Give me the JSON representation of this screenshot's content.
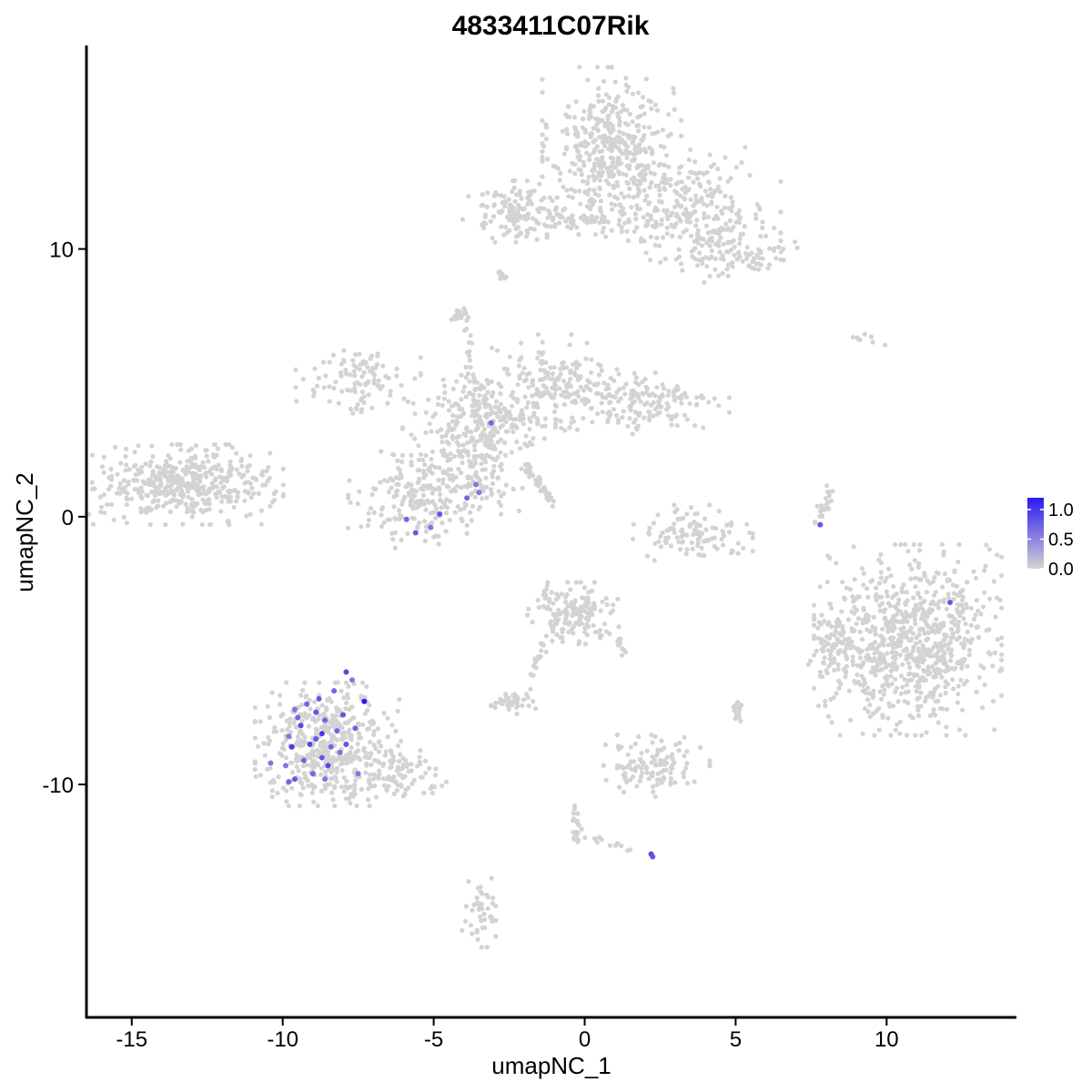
{
  "chart_data": {
    "type": "scatter",
    "title": "4833411C07Rik",
    "xlabel": "umapNC_1",
    "ylabel": "umapNC_2",
    "xlim": [
      -16.5,
      14.3
    ],
    "ylim": [
      -18.7,
      17.6
    ],
    "x_ticks": [
      -15,
      -10,
      -5,
      0,
      5,
      10
    ],
    "x_tick_labels": [
      "-15",
      "-10",
      "-5",
      "0",
      "5",
      "10"
    ],
    "y_ticks": [
      -10,
      0,
      10
    ],
    "y_tick_labels": [
      "-10",
      "0",
      "10"
    ],
    "grid": false,
    "legend": {
      "position": "right",
      "type": "colorbar",
      "min": 0.0,
      "max": 1.2,
      "ticks": [
        0.0,
        0.5,
        1.0
      ],
      "tick_labels": [
        "0.0",
        "0.5",
        "1.0"
      ],
      "low_color": "#d3d3d3",
      "high_color": "#2a1af0"
    },
    "background_color": "#d3d3d3",
    "clusters": [
      {
        "cx": 0.9,
        "cy": 13.8,
        "sx": 1.0,
        "sy": 1.3,
        "n": 420
      },
      {
        "cx": 3.5,
        "cy": 11.5,
        "sx": 1.3,
        "sy": 1.0,
        "n": 260
      },
      {
        "cx": 5.2,
        "cy": 9.9,
        "sx": 0.8,
        "sy": 0.5,
        "n": 90
      },
      {
        "cx": -2.2,
        "cy": 11.4,
        "sx": 0.8,
        "sy": 0.5,
        "n": 130
      },
      {
        "cx": 0.5,
        "cy": 11.0,
        "sx": 1.1,
        "sy": 0.4,
        "n": 50
      },
      {
        "cx": -13.2,
        "cy": 1.2,
        "sx": 1.4,
        "sy": 0.65,
        "n": 440
      },
      {
        "cx": -3.5,
        "cy": 3.9,
        "sx": 1.1,
        "sy": 0.7,
        "n": 170
      },
      {
        "cx": -7.5,
        "cy": 5.1,
        "sx": 0.9,
        "sy": 0.6,
        "n": 100
      },
      {
        "cx": -1.0,
        "cy": 5.2,
        "sx": 0.9,
        "sy": 0.7,
        "n": 130
      },
      {
        "cx": 1.8,
        "cy": 4.2,
        "sx": 1.3,
        "sy": 0.55,
        "n": 170
      },
      {
        "cx": -3.9,
        "cy": 2.0,
        "sx": 0.8,
        "sy": 0.8,
        "n": 150
      },
      {
        "cx": -5.3,
        "cy": 0.6,
        "sx": 1.1,
        "sy": 0.8,
        "n": 200
      },
      {
        "cx": -2.3,
        "cy": 3.5,
        "sx": 0.9,
        "sy": 0.5,
        "n": 70
      },
      {
        "cx": 3.5,
        "cy": -0.6,
        "sx": 0.9,
        "sy": 0.45,
        "n": 110
      },
      {
        "cx": 10.7,
        "cy": -4.6,
        "sx": 1.35,
        "sy": 1.55,
        "n": 800
      },
      {
        "cx": -8.5,
        "cy": -8.5,
        "sx": 1.05,
        "sy": 1.0,
        "n": 480
      },
      {
        "cx": -6.0,
        "cy": -9.6,
        "sx": 0.8,
        "sy": 0.45,
        "n": 80
      },
      {
        "cx": -0.4,
        "cy": -3.6,
        "sx": 0.65,
        "sy": 0.5,
        "n": 170
      },
      {
        "cx": 2.3,
        "cy": -9.3,
        "sx": 0.8,
        "sy": 0.5,
        "n": 120
      },
      {
        "cx": -2.4,
        "cy": -6.9,
        "sx": 0.4,
        "sy": 0.2,
        "n": 40
      },
      {
        "cx": -3.4,
        "cy": -14.7,
        "sx": 0.3,
        "sy": 0.6,
        "n": 45
      },
      {
        "cx": 8.1,
        "cy": -5.1,
        "sx": 0.3,
        "sy": 0.5,
        "n": 40
      }
    ],
    "segments": [
      {
        "x1": -4.0,
        "y1": 7.5,
        "x2": -3.5,
        "y2": 3.5,
        "n": 30
      },
      {
        "x1": -4.0,
        "y1": 7.7,
        "x2": -4.3,
        "y2": 7.4,
        "n": 20
      },
      {
        "x1": -2.0,
        "y1": 2.0,
        "x2": -1.1,
        "y2": 0.6,
        "n": 45
      },
      {
        "x1": -1.2,
        "y1": 11.2,
        "x2": 0.8,
        "y2": 11.0,
        "n": 30
      },
      {
        "x1": 7.7,
        "y1": -0.3,
        "x2": 8.2,
        "y2": 1.1,
        "n": 25
      },
      {
        "x1": -1.3,
        "y1": -4.5,
        "x2": -1.8,
        "y2": -6.1,
        "n": 18
      },
      {
        "x1": -0.3,
        "y1": -10.8,
        "x2": -0.2,
        "y2": -12.1,
        "n": 20
      },
      {
        "x1": 5.0,
        "y1": -7.0,
        "x2": 5.1,
        "y2": -7.6,
        "n": 20
      },
      {
        "x1": -0.2,
        "y1": -11.9,
        "x2": 1.8,
        "y2": -12.5,
        "n": 14
      },
      {
        "x1": 8.8,
        "y1": 6.7,
        "x2": 9.9,
        "y2": 6.5,
        "n": 8
      },
      {
        "x1": 1.0,
        "y1": -3.8,
        "x2": 1.3,
        "y2": -5.2,
        "n": 12
      },
      {
        "x1": -2.8,
        "y1": 9.2,
        "x2": -2.6,
        "y2": 8.8,
        "n": 10
      },
      {
        "x1": 8.5,
        "y1": -4.0,
        "x2": 8.2,
        "y2": -5.5,
        "n": 15
      }
    ],
    "expressing_points": [
      {
        "x": -7.3,
        "y": -6.9,
        "v": 1.2
      },
      {
        "x": 12.1,
        "y": -3.2,
        "v": 0.8
      },
      {
        "x": 2.2,
        "y": -12.6,
        "v": 0.9
      },
      {
        "x": 2.25,
        "y": -12.7,
        "v": 0.8
      },
      {
        "x": -3.1,
        "y": 3.5,
        "v": 0.7
      },
      {
        "x": -3.6,
        "y": 1.2,
        "v": 0.6
      },
      {
        "x": -3.5,
        "y": 0.9,
        "v": 0.6
      },
      {
        "x": -3.9,
        "y": 0.7,
        "v": 0.7
      },
      {
        "x": -4.8,
        "y": 0.1,
        "v": 0.8
      },
      {
        "x": -5.6,
        "y": -0.6,
        "v": 0.8
      },
      {
        "x": -5.9,
        "y": -0.1,
        "v": 0.7
      },
      {
        "x": -5.1,
        "y": -0.4,
        "v": 0.6
      },
      {
        "x": 7.8,
        "y": -0.3,
        "v": 0.8
      },
      {
        "x": -7.9,
        "y": -5.8,
        "v": 0.9
      },
      {
        "x": -7.7,
        "y": -6.1,
        "v": 0.6
      },
      {
        "x": -8.3,
        "y": -6.5,
        "v": 0.7
      },
      {
        "x": -8.8,
        "y": -6.8,
        "v": 0.8
      },
      {
        "x": -9.2,
        "y": -7.0,
        "v": 0.7
      },
      {
        "x": -9.6,
        "y": -7.2,
        "v": 0.6
      },
      {
        "x": -8.0,
        "y": -7.4,
        "v": 0.8
      },
      {
        "x": -8.6,
        "y": -7.6,
        "v": 0.7
      },
      {
        "x": -9.4,
        "y": -7.8,
        "v": 0.9
      },
      {
        "x": -9.8,
        "y": -8.2,
        "v": 0.6
      },
      {
        "x": -8.2,
        "y": -8.0,
        "v": 0.7
      },
      {
        "x": -8.9,
        "y": -8.3,
        "v": 0.8
      },
      {
        "x": -9.1,
        "y": -8.5,
        "v": 0.9
      },
      {
        "x": -9.7,
        "y": -8.6,
        "v": 1.0
      },
      {
        "x": -8.4,
        "y": -8.6,
        "v": 0.7
      },
      {
        "x": -8.1,
        "y": -8.8,
        "v": 0.6
      },
      {
        "x": -7.9,
        "y": -8.5,
        "v": 0.8
      },
      {
        "x": -8.7,
        "y": -9.0,
        "v": 0.8
      },
      {
        "x": -9.3,
        "y": -9.1,
        "v": 0.7
      },
      {
        "x": -9.9,
        "y": -9.3,
        "v": 0.6
      },
      {
        "x": -8.5,
        "y": -9.3,
        "v": 0.9
      },
      {
        "x": -9.0,
        "y": -9.6,
        "v": 0.7
      },
      {
        "x": -9.6,
        "y": -9.8,
        "v": 0.8
      },
      {
        "x": -9.8,
        "y": -9.9,
        "v": 0.7
      },
      {
        "x": -10.4,
        "y": -9.2,
        "v": 0.6
      },
      {
        "x": -8.6,
        "y": -9.8,
        "v": 0.6
      },
      {
        "x": -7.6,
        "y": -7.9,
        "v": 0.7
      },
      {
        "x": -7.5,
        "y": -9.6,
        "v": 0.6
      },
      {
        "x": -8.9,
        "y": -7.3,
        "v": 0.8
      },
      {
        "x": -9.5,
        "y": -7.5,
        "v": 0.7
      },
      {
        "x": -8.7,
        "y": -8.1,
        "v": 1.0
      }
    ]
  }
}
